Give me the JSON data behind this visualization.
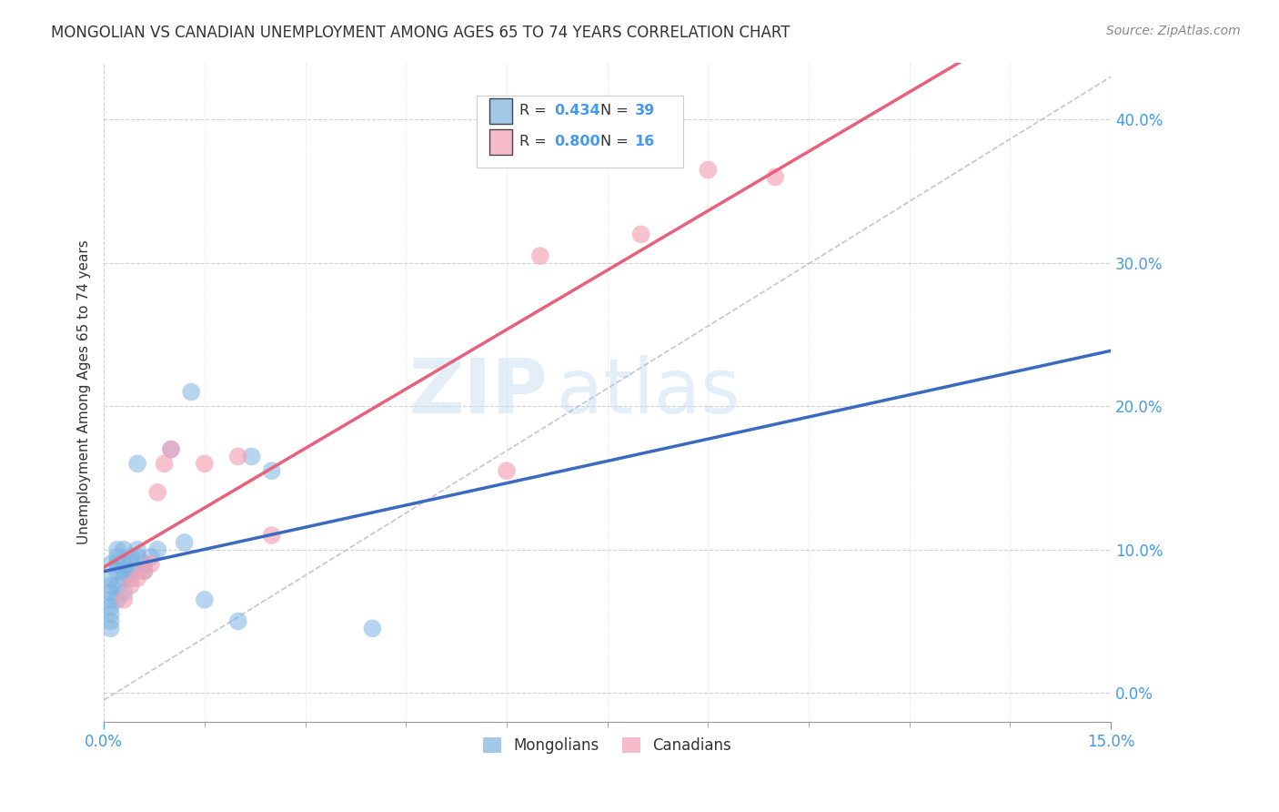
{
  "title": "MONGOLIAN VS CANADIAN UNEMPLOYMENT AMONG AGES 65 TO 74 YEARS CORRELATION CHART",
  "source": "Source: ZipAtlas.com",
  "ylabel": "Unemployment Among Ages 65 to 74 years",
  "xlim": [
    0.0,
    0.15
  ],
  "ylim": [
    -0.02,
    0.44
  ],
  "xticks_major": [
    0.0,
    0.15
  ],
  "xtick_minor": [
    0.0,
    0.015,
    0.03,
    0.045,
    0.06,
    0.075,
    0.09,
    0.105,
    0.12,
    0.135,
    0.15
  ],
  "xtick_labels": [
    "0.0%",
    "15.0%"
  ],
  "yticks": [
    0.0,
    0.1,
    0.2,
    0.3,
    0.4
  ],
  "ytick_labels": [
    "0.0%",
    "10.0%",
    "20.0%",
    "30.0%",
    "40.0%"
  ],
  "mongolian_color": "#7db3e0",
  "canadian_color": "#f4a0b5",
  "mongolian_line_color": "#3a6abf",
  "canadian_line_color": "#e8607a",
  "legend_R_mongolian": "0.434",
  "legend_N_mongolian": "39",
  "legend_R_canadian": "0.800",
  "legend_N_canadian": "16",
  "mongolian_x": [
    0.001,
    0.001,
    0.001,
    0.001,
    0.001,
    0.001,
    0.001,
    0.001,
    0.001,
    0.002,
    0.002,
    0.002,
    0.002,
    0.002,
    0.002,
    0.003,
    0.003,
    0.003,
    0.003,
    0.003,
    0.004,
    0.004,
    0.004,
    0.004,
    0.005,
    0.005,
    0.005,
    0.006,
    0.006,
    0.007,
    0.008,
    0.01,
    0.012,
    0.013,
    0.015,
    0.02,
    0.022,
    0.025,
    0.04
  ],
  "mongolian_y": [
    0.045,
    0.05,
    0.055,
    0.06,
    0.065,
    0.07,
    0.075,
    0.08,
    0.09,
    0.065,
    0.075,
    0.085,
    0.09,
    0.095,
    0.1,
    0.07,
    0.08,
    0.085,
    0.09,
    0.1,
    0.08,
    0.085,
    0.09,
    0.095,
    0.095,
    0.1,
    0.16,
    0.085,
    0.09,
    0.095,
    0.1,
    0.17,
    0.105,
    0.21,
    0.065,
    0.05,
    0.165,
    0.155,
    0.045
  ],
  "canadian_x": [
    0.003,
    0.004,
    0.005,
    0.006,
    0.007,
    0.008,
    0.009,
    0.01,
    0.015,
    0.02,
    0.025,
    0.06,
    0.065,
    0.08,
    0.09,
    0.1
  ],
  "canadian_y": [
    0.065,
    0.075,
    0.08,
    0.085,
    0.09,
    0.14,
    0.16,
    0.17,
    0.16,
    0.165,
    0.11,
    0.155,
    0.305,
    0.32,
    0.365,
    0.36
  ],
  "watermark_zip": "ZIP",
  "watermark_atlas": "atlas",
  "background_color": "#ffffff",
  "grid_color": "#cccccc",
  "tick_color": "#4499ee",
  "title_fontsize": 12,
  "label_fontsize": 11,
  "tick_fontsize": 12,
  "source_fontsize": 10
}
